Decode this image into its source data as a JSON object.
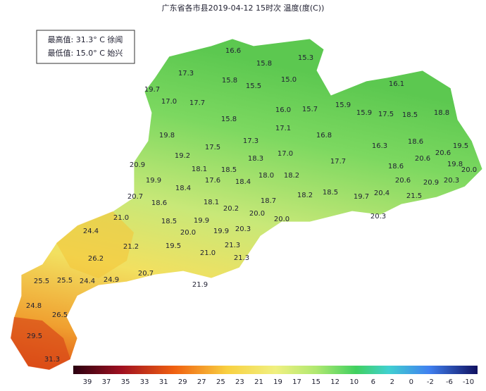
{
  "header": {
    "title": "广东省各市县2019-04-12 15时次 温度(度(C))"
  },
  "info": {
    "lines": [
      "最高值: 31.3° C 徐闻",
      "最低值: 15.0° C 始兴"
    ]
  },
  "labels": [
    "16.6",
    "15.8",
    "15.3",
    "17.3",
    "15.8",
    "15.5",
    "15.0",
    "16.1",
    "19.7",
    "17.0",
    "17.7",
    "16.0",
    "15.7",
    "15.9",
    "15.9",
    "17.5",
    "18.5",
    "18.8",
    "15.8",
    "17.1",
    "16.8",
    "19.8",
    "17.5",
    "17.3",
    "16.3",
    "18.6",
    "19.5",
    "20.6",
    "19.2",
    "18.3",
    "17.0",
    "17.7",
    "19.8",
    "20.0",
    "20.9",
    "18.1",
    "18.5",
    "18.6",
    "20.6",
    "19.9",
    "18.4",
    "17.6",
    "18.0",
    "18.2",
    "18.4",
    "20.6",
    "20.9",
    "20.3",
    "20.7",
    "18.1",
    "18.7",
    "18.2",
    "18.5",
    "19.7",
    "20.4",
    "21.5",
    "18.6",
    "20.2",
    "20.0",
    "20.3",
    "21.0",
    "18.5",
    "19.9",
    "20.0",
    "24.4",
    "20.0",
    "19.9",
    "20.3",
    "26.2",
    "21.2",
    "19.5",
    "21.3",
    "21.0",
    "21.3",
    "20.7",
    "25.5",
    "25.5",
    "24.4",
    "24.9",
    "21.9",
    "24.8",
    "26.5",
    "29.5",
    "31.3"
  ],
  "scale": {
    "ticks": [
      "39",
      "37",
      "35",
      "33",
      "31",
      "29",
      "27",
      "25",
      "23",
      "21",
      "19",
      "17",
      "15",
      "12",
      "10",
      "6",
      "2",
      "0",
      "-2",
      "-6",
      "-10"
    ]
  }
}
